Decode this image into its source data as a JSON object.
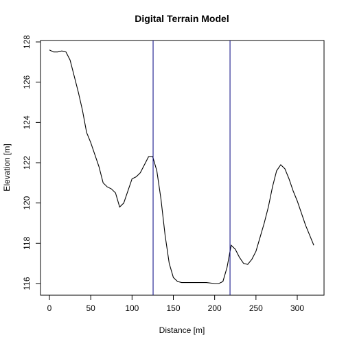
{
  "chart_data": {
    "type": "line",
    "title": "Digital Terrain Model",
    "x_label": "Distance [m]",
    "y_label": "Elevation [m]",
    "x": [
      0,
      5,
      10,
      15,
      20,
      25,
      30,
      35,
      40,
      45,
      50,
      55,
      60,
      65,
      70,
      75,
      80,
      85,
      90,
      95,
      100,
      105,
      110,
      115,
      120,
      125,
      130,
      135,
      140,
      145,
      150,
      155,
      160,
      170,
      180,
      190,
      200,
      205,
      210,
      215,
      220,
      225,
      230,
      235,
      240,
      245,
      250,
      255,
      260,
      265,
      270,
      275,
      280,
      285,
      290,
      295,
      300,
      305,
      310,
      315,
      320
    ],
    "series": [
      {
        "name": "Elevation",
        "color": "#000000",
        "values": [
          127.6,
          127.5,
          127.5,
          127.55,
          127.5,
          127.1,
          126.3,
          125.5,
          124.6,
          123.5,
          123.0,
          122.4,
          121.8,
          121.0,
          120.8,
          120.7,
          120.5,
          119.8,
          120.0,
          120.6,
          121.2,
          121.3,
          121.5,
          121.9,
          122.3,
          122.3,
          121.6,
          120.2,
          118.4,
          117.0,
          116.3,
          116.1,
          116.05,
          116.05,
          116.05,
          116.05,
          116.0,
          116.0,
          116.1,
          116.8,
          117.9,
          117.7,
          117.3,
          117.0,
          116.95,
          117.2,
          117.6,
          118.3,
          119.0,
          119.8,
          120.8,
          121.6,
          121.9,
          121.7,
          121.2,
          120.6,
          120.1,
          119.5,
          118.9,
          118.4,
          117.9
        ]
      }
    ],
    "vlines": [
      125.5,
      218.6
    ],
    "vline_color": "#000080",
    "xlim": [
      -10.8,
      332.4
    ],
    "ylim": [
      115.42,
      128.07
    ],
    "xticks": [
      0,
      50,
      100,
      150,
      200,
      250,
      300
    ],
    "yticks": [
      116,
      118,
      120,
      122,
      124,
      126,
      128
    ]
  }
}
